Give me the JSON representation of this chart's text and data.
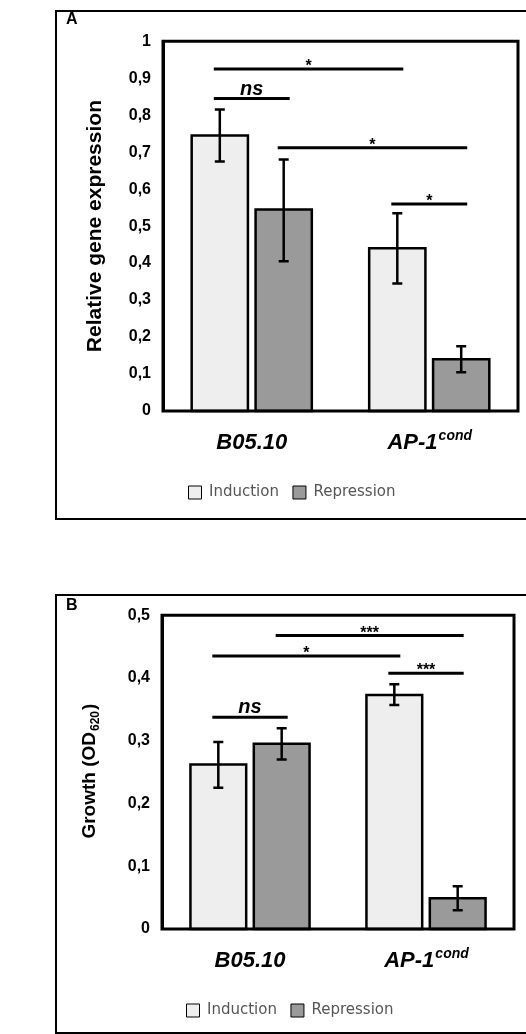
{
  "chart_data": [
    {
      "type": "bar",
      "title": "A",
      "ylabel": "Relative gene expression",
      "categories": [
        "B05.10",
        "AP-1$^{cond}$"
      ],
      "series": [
        {
          "name": "Induction",
          "color": "#eeeeee",
          "values": [
            0.745,
            0.44
          ],
          "errors": [
            [
              0.675,
              0.815
            ],
            [
              0.345,
              0.535
            ]
          ]
        },
        {
          "name": "Repression",
          "color": "#9a9a9a",
          "values": [
            0.545,
            0.14
          ],
          "errors": [
            [
              0.405,
              0.68
            ],
            [
              0.105,
              0.175
            ]
          ]
        }
      ],
      "ylim": [
        0,
        1
      ],
      "yticks": [
        {
          "value": 0,
          "label": "0"
        },
        {
          "value": 0.1,
          "label": "0,1"
        },
        {
          "value": 0.2,
          "label": "0,2"
        },
        {
          "value": 0.3,
          "label": "0,3"
        },
        {
          "value": 0.4,
          "label": "0,4"
        },
        {
          "value": 0.5,
          "label": "0,5"
        },
        {
          "value": 0.6,
          "label": "0,6"
        },
        {
          "value": 0.7,
          "label": "0,7"
        },
        {
          "value": 0.8,
          "label": "0,8"
        },
        {
          "value": 0.9,
          "label": "0,9"
        },
        {
          "value": 1,
          "label": "1"
        }
      ],
      "annotations": [
        "*",
        "ns",
        "*",
        "*"
      ],
      "legend": "bottom",
      "grid": false
    },
    {
      "type": "bar",
      "title": "B",
      "ylabel": "Growth (OD$_{620}$)",
      "categories": [
        "B05.10",
        "AP-1$^{cond}$"
      ],
      "series": [
        {
          "name": "Induction",
          "color": "#eeeeee",
          "values": [
            0.262,
            0.373
          ],
          "errors": [
            [
              0.225,
              0.298
            ],
            [
              0.357,
              0.39
            ]
          ]
        },
        {
          "name": "Repression",
          "color": "#9a9a9a",
          "values": [
            0.295,
            0.049
          ],
          "errors": [
            [
              0.27,
              0.32
            ],
            [
              0.03,
              0.068
            ]
          ]
        }
      ],
      "ylim": [
        0,
        0.5
      ],
      "yticks": [
        {
          "value": 0,
          "label": "0"
        },
        {
          "value": 0.1,
          "label": "0,1"
        },
        {
          "value": 0.2,
          "label": "0,2"
        },
        {
          "value": 0.3,
          "label": "0,3"
        },
        {
          "value": 0.4,
          "label": "0,4"
        },
        {
          "value": 0.5,
          "label": "0,5"
        }
      ],
      "annotations": [
        "***",
        "*",
        "***",
        "ns"
      ],
      "legend": "bottom",
      "grid": false
    }
  ]
}
